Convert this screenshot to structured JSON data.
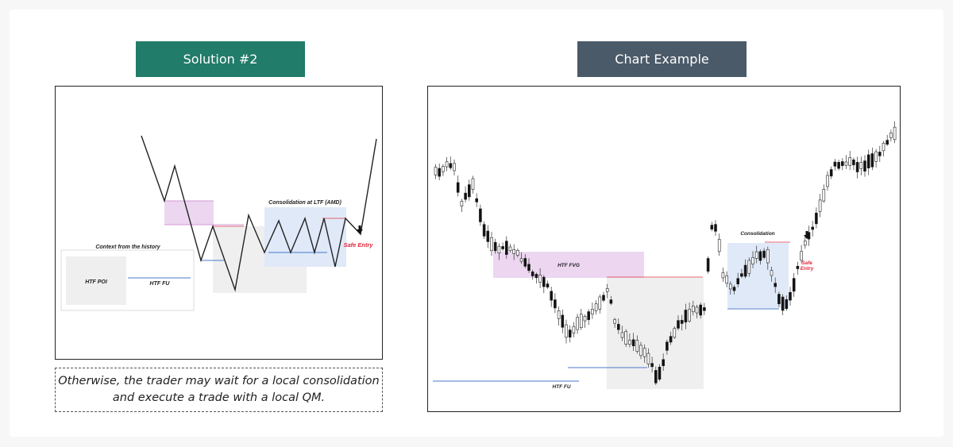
{
  "left_header": "Solution #2",
  "right_header": "Chart Example",
  "left_diagram": {
    "context_title": "Context from the history",
    "htf_poi": "HTF POI",
    "htf_fu": "HTF FU",
    "consolidation_label": "Consolidation at LTF (AMD)",
    "safe_entry": "Safe Entry"
  },
  "caption": {
    "line1": "Otherwise, the trader may wait for a local consolidation",
    "line2": "and execute a trade with a local QM."
  },
  "right_chart": {
    "htf_fvg": "HTF FVG",
    "htf_fu": "HTF FU",
    "consolidation": "Consolidation",
    "safe_entry_1": "Safe",
    "safe_entry_2": "Entry"
  },
  "colors": {
    "green_header": "#217c6a",
    "slate_header": "#4a5a69",
    "pink_zone": "#ecd6f0",
    "blue_zone": "#dfe9f8",
    "gray_zone": "#efefef",
    "red_line": "#e06070",
    "blue_line": "#4a78c8",
    "safe_entry_red": "#e0283c"
  }
}
